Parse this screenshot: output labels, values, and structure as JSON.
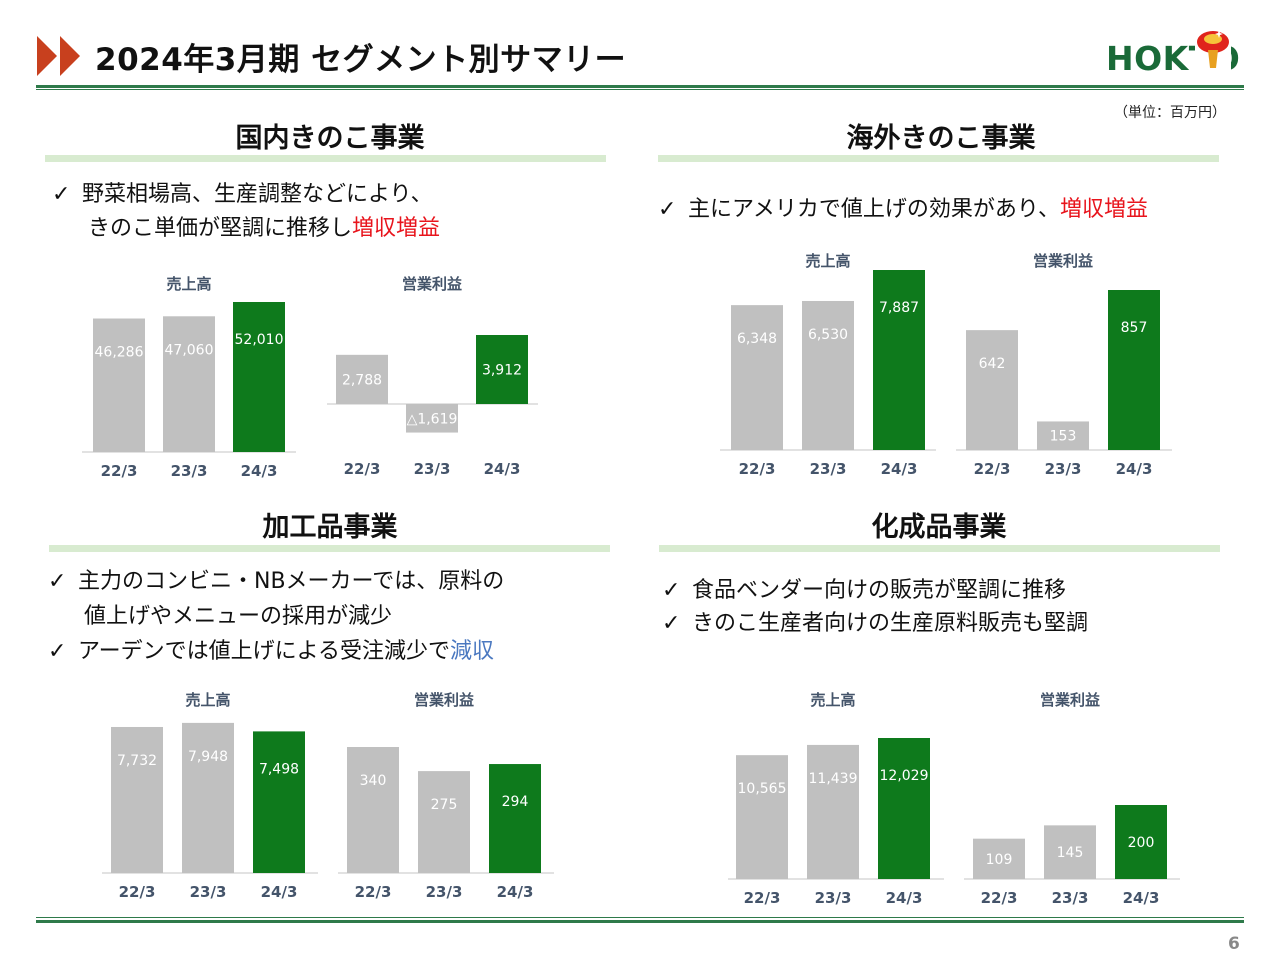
{
  "header": {
    "title": "2024年3月期 セグメント別サマリー",
    "logo_text": "HOKTO",
    "accent_color": "#c8401e",
    "brand_color": "#1a6a38"
  },
  "unit_note": "（単位：百万円）",
  "page_number": "6",
  "segments": [
    {
      "title": "国内きのこ事業",
      "bullets": [
        {
          "check": "✓",
          "text": "野菜相場高、生産調整などにより、"
        },
        {
          "text": "きのこ単価が堅調に推移し",
          "highlight": "増収増益"
        }
      ]
    },
    {
      "title": "海外きのこ事業",
      "bullets": [
        {
          "check": "✓",
          "text": "主にアメリカで値上げの効果があり、",
          "highlight": "増収増益"
        }
      ]
    },
    {
      "title": "加工品事業",
      "bullets": [
        {
          "check": "✓",
          "text": "主力のコンビニ・NBメーカーでは、原料の"
        },
        {
          "text": "値上げやメニューの採用が減少"
        },
        {
          "check": "✓",
          "text": "アーデンでは値上げによる受注減少で",
          "highlight": "減収"
        }
      ]
    },
    {
      "title": "化成品事業",
      "bullets": [
        {
          "check": "✓",
          "text": "食品ベンダー向けの販売が堅調に推移"
        },
        {
          "check": "✓",
          "text": "きのこ生産者向けの生産原料販売も堅調"
        }
      ]
    }
  ],
  "chart_data": [
    {
      "type": "bar",
      "title": "売上高",
      "segment": "国内きのこ事業",
      "categories": [
        "22/3",
        "23/3",
        "24/3"
      ],
      "values": [
        46286,
        47060,
        52010
      ],
      "labels": [
        "46,286",
        "47,060",
        "52,010"
      ],
      "colors": [
        "#c0c0c0",
        "#c0c0c0",
        "#0e7a1c"
      ]
    },
    {
      "type": "bar",
      "title": "営業利益",
      "segment": "国内きのこ事業",
      "categories": [
        "22/3",
        "23/3",
        "24/3"
      ],
      "values": [
        2788,
        -1619,
        3912
      ],
      "labels": [
        "2,788",
        "△1,619",
        "3,912"
      ],
      "colors": [
        "#c0c0c0",
        "#c0c0c0",
        "#0e7a1c"
      ]
    },
    {
      "type": "bar",
      "title": "売上高",
      "segment": "海外きのこ事業",
      "categories": [
        "22/3",
        "23/3",
        "24/3"
      ],
      "values": [
        6348,
        6530,
        7887
      ],
      "labels": [
        "6,348",
        "6,530",
        "7,887"
      ],
      "colors": [
        "#c0c0c0",
        "#c0c0c0",
        "#0e7a1c"
      ]
    },
    {
      "type": "bar",
      "title": "営業利益",
      "segment": "海外きのこ事業",
      "categories": [
        "22/3",
        "23/3",
        "24/3"
      ],
      "values": [
        642,
        153,
        857
      ],
      "labels": [
        "642",
        "153",
        "857"
      ],
      "colors": [
        "#c0c0c0",
        "#c0c0c0",
        "#0e7a1c"
      ]
    },
    {
      "type": "bar",
      "title": "売上高",
      "segment": "加工品事業",
      "categories": [
        "22/3",
        "23/3",
        "24/3"
      ],
      "values": [
        7732,
        7948,
        7498
      ],
      "labels": [
        "7,732",
        "7,948",
        "7,498"
      ],
      "colors": [
        "#c0c0c0",
        "#c0c0c0",
        "#0e7a1c"
      ]
    },
    {
      "type": "bar",
      "title": "営業利益",
      "segment": "加工品事業",
      "categories": [
        "22/3",
        "23/3",
        "24/3"
      ],
      "values": [
        340,
        275,
        294
      ],
      "labels": [
        "340",
        "275",
        "294"
      ],
      "colors": [
        "#c0c0c0",
        "#c0c0c0",
        "#0e7a1c"
      ]
    },
    {
      "type": "bar",
      "title": "売上高",
      "segment": "化成品事業",
      "categories": [
        "22/3",
        "23/3",
        "24/3"
      ],
      "values": [
        10565,
        11439,
        12029
      ],
      "labels": [
        "10,565",
        "11,439",
        "12,029"
      ],
      "colors": [
        "#c0c0c0",
        "#c0c0c0",
        "#0e7a1c"
      ]
    },
    {
      "type": "bar",
      "title": "営業利益",
      "segment": "化成品事業",
      "categories": [
        "22/3",
        "23/3",
        "24/3"
      ],
      "values": [
        109,
        145,
        200
      ],
      "labels": [
        "109",
        "145",
        "200"
      ],
      "colors": [
        "#c0c0c0",
        "#c0c0c0",
        "#0e7a1c"
      ]
    }
  ]
}
